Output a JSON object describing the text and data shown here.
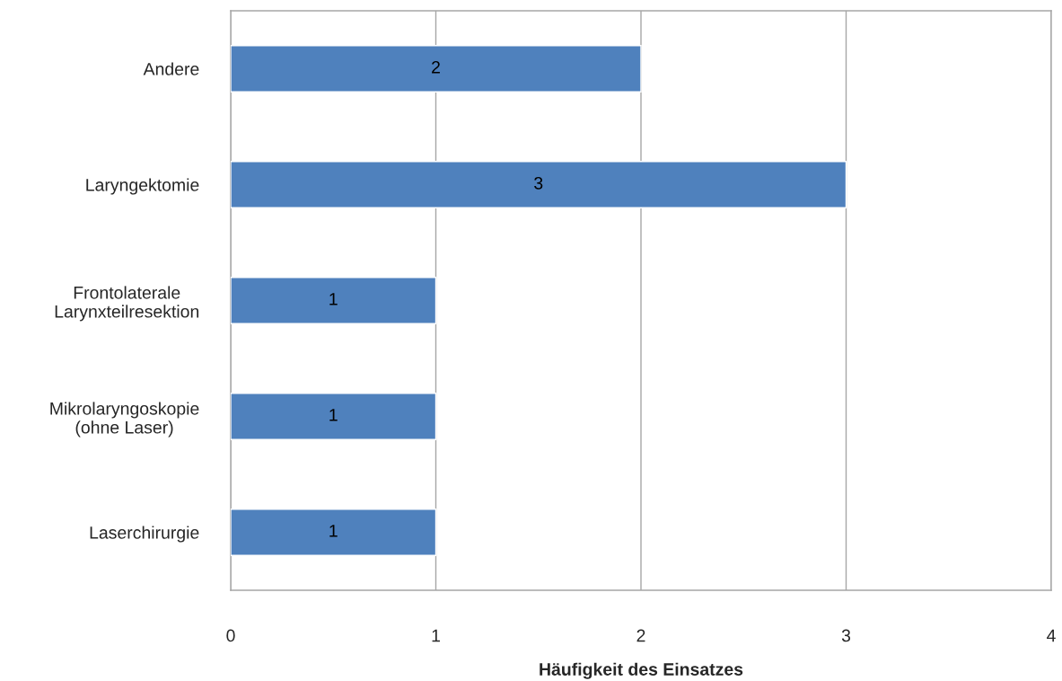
{
  "chart_data": {
    "type": "bar",
    "orientation": "horizontal",
    "categories": [
      "Andere",
      "Laryngektomie",
      "Frontolaterale\nLarynxteilresektion",
      "Mikrolaryngoskopie\n(ohne Laser)",
      "Laserchirurgie"
    ],
    "values": [
      2,
      3,
      1,
      1,
      1
    ],
    "color": "#4f81bd",
    "xlabel": "Häufigkeit des Einsatzes",
    "xlim": [
      0,
      4
    ],
    "xticks": [
      0,
      1,
      2,
      3,
      4
    ],
    "grid": "x",
    "data_labels": true
  }
}
